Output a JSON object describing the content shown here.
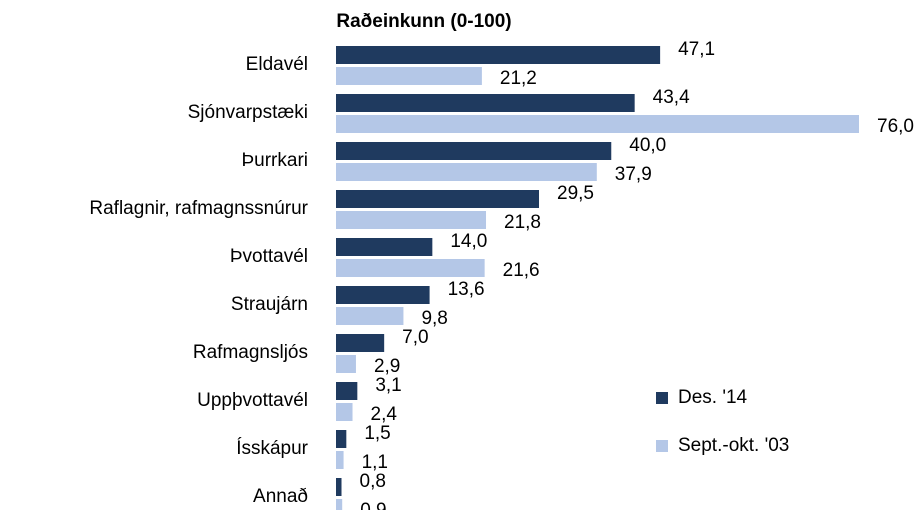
{
  "chart_data": {
    "type": "bar",
    "orientation": "horizontal",
    "title": "Raðeinkunn (0-100)",
    "categories": [
      "Eldavél",
      "Sjónvarpstæki",
      "Þurrkari",
      "Raflagnir, rafmagnssnúrur",
      "Þvottavél",
      "Straujárn",
      "Rafmagnsljós",
      "Uppþvottavél",
      "Ísskápur",
      "Annað"
    ],
    "series": [
      {
        "name": "Des. '14",
        "color": "#1f3a5f",
        "values": [
          47.1,
          43.4,
          40.0,
          29.5,
          14.0,
          13.6,
          7.0,
          3.1,
          1.5,
          0.8
        ],
        "value_labels": [
          "47,1",
          "43,4",
          "40,0",
          "29,5",
          "14,0",
          "13,6",
          "7,0",
          "3,1",
          "1,5",
          "0,8"
        ]
      },
      {
        "name": "Sept.-okt. '03",
        "color": "#b4c7e7",
        "values": [
          21.2,
          76.0,
          37.9,
          21.8,
          21.6,
          9.8,
          2.9,
          2.4,
          1.1,
          0.9
        ],
        "value_labels": [
          "21,2",
          "76,0",
          "37,9",
          "21,8",
          "21,6",
          "9,8",
          "2,9",
          "2,4",
          "1,1",
          "0,9"
        ]
      }
    ],
    "legend": "right"
  }
}
